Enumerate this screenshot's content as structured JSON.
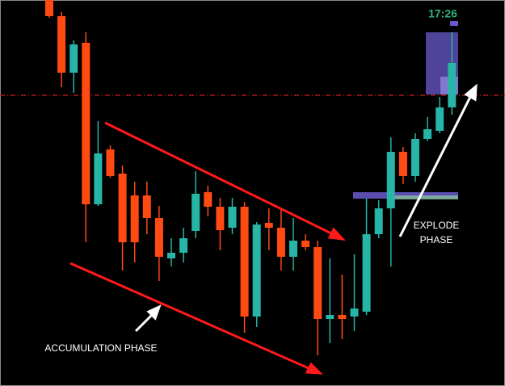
{
  "chart_data": {
    "type": "candlestick",
    "clock": "17:26",
    "annotations": [
      "ACCUMULATION PHASE",
      "EXPLODE",
      "PHASE"
    ],
    "up_color": "#26b5a6",
    "down_color": "#ff4a12",
    "ylim": [
      0,
      478
    ],
    "hline": 360,
    "open": [
      478,
      458,
      388,
      425,
      225,
      293,
      263,
      236,
      236,
      208,
      158,
      165,
      192,
      240,
      222,
      196,
      222,
      86,
      202,
      196,
      160,
      180,
      172,
      83,
      88,
      86,
      92,
      188,
      220,
      290,
      260,
      306,
      316,
      345
    ],
    "close": [
      458,
      388,
      423,
      225,
      288,
      260,
      178,
      178,
      208,
      160,
      165,
      183,
      238,
      222,
      193,
      222,
      86,
      200,
      196,
      160,
      180,
      172,
      83,
      88,
      83,
      96,
      188,
      220,
      290,
      260,
      306,
      318,
      345,
      400
    ],
    "high": [
      478,
      463,
      428,
      438,
      328,
      298,
      273,
      253,
      253,
      223,
      183,
      196,
      266,
      248,
      233,
      233,
      228,
      203,
      220,
      220,
      208,
      188,
      180,
      158,
      138,
      163,
      232,
      230,
      308,
      296,
      313,
      333,
      358,
      438
    ],
    "low": [
      456,
      370,
      363,
      178,
      223,
      258,
      143,
      153,
      188,
      130,
      148,
      153,
      183,
      210,
      168,
      188,
      66,
      73,
      168,
      143,
      143,
      168,
      38,
      53,
      58,
      68,
      88,
      183,
      148,
      250,
      253,
      303,
      313,
      336
    ]
  }
}
